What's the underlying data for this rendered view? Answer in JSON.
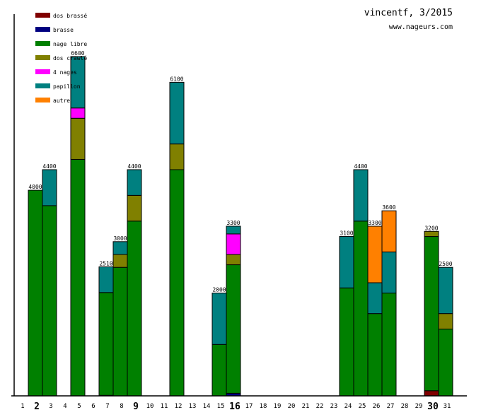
{
  "chart_data": {
    "type": "bar",
    "stacked": true,
    "title": "vincentf, 3/2015",
    "subtitle": "www.nageurs.com",
    "xlabel": "",
    "ylabel": "",
    "ylim": [
      0,
      6600
    ],
    "grid": false,
    "legend_position": "top-left",
    "categories": [
      "1",
      "2",
      "3",
      "4",
      "5",
      "6",
      "7",
      "8",
      "9",
      "10",
      "11",
      "12",
      "13",
      "14",
      "15",
      "16",
      "17",
      "18",
      "19",
      "20",
      "21",
      "22",
      "23",
      "24",
      "25",
      "26",
      "27",
      "28",
      "29",
      "30",
      "31"
    ],
    "bold_categories": [
      "2",
      "9",
      "16",
      "30"
    ],
    "series": [
      {
        "name": "dos brassé",
        "color": "#800000",
        "values": [
          0,
          0,
          0,
          0,
          0,
          0,
          0,
          0,
          0,
          0,
          0,
          0,
          0,
          0,
          0,
          0,
          0,
          0,
          0,
          0,
          0,
          0,
          0,
          0,
          0,
          0,
          0,
          0,
          0,
          100,
          0
        ]
      },
      {
        "name": "brasse",
        "color": "#000080",
        "values": [
          0,
          0,
          0,
          0,
          0,
          0,
          10,
          0,
          0,
          0,
          0,
          0,
          0,
          0,
          0,
          50,
          0,
          0,
          0,
          0,
          0,
          0,
          0,
          0,
          0,
          0,
          0,
          0,
          0,
          0,
          0
        ]
      },
      {
        "name": "nage libre",
        "color": "#008000",
        "values": [
          0,
          4000,
          3700,
          0,
          4600,
          0,
          2000,
          2500,
          3400,
          0,
          0,
          4400,
          0,
          0,
          1000,
          2500,
          0,
          0,
          0,
          0,
          0,
          0,
          0,
          2100,
          3400,
          1600,
          2000,
          0,
          0,
          3000,
          1300
        ]
      },
      {
        "name": "dos crawlé",
        "color": "#808000",
        "values": [
          0,
          0,
          0,
          0,
          800,
          0,
          0,
          250,
          500,
          0,
          0,
          500,
          0,
          0,
          0,
          200,
          0,
          0,
          0,
          0,
          0,
          0,
          0,
          0,
          0,
          0,
          0,
          0,
          0,
          100,
          300
        ]
      },
      {
        "name": "4 nages",
        "color": "#ff00ff",
        "values": [
          0,
          0,
          0,
          0,
          200,
          0,
          0,
          0,
          0,
          0,
          0,
          0,
          0,
          0,
          0,
          400,
          0,
          0,
          0,
          0,
          0,
          0,
          0,
          0,
          0,
          0,
          0,
          0,
          0,
          0,
          0
        ]
      },
      {
        "name": "papillon",
        "color": "#008080",
        "values": [
          0,
          0,
          700,
          0,
          1000,
          0,
          500,
          250,
          500,
          0,
          0,
          1200,
          0,
          0,
          1000,
          150,
          0,
          0,
          0,
          0,
          0,
          0,
          0,
          1000,
          1000,
          600,
          800,
          0,
          0,
          0,
          900
        ]
      },
      {
        "name": "autre",
        "color": "#ff8000",
        "values": [
          0,
          0,
          0,
          0,
          0,
          0,
          0,
          0,
          0,
          0,
          0,
          0,
          0,
          0,
          0,
          0,
          0,
          0,
          0,
          0,
          0,
          0,
          0,
          0,
          0,
          1100,
          800,
          0,
          0,
          0,
          0
        ]
      }
    ],
    "totals": [
      "",
      "4000",
      "4400",
      "",
      "6600",
      "",
      "2510",
      "3000",
      "4400",
      "",
      "",
      "6100",
      "",
      "",
      "2000",
      "3300",
      "",
      "",
      "",
      "",
      "",
      "",
      "",
      "3100",
      "4400",
      "3300",
      "3600",
      "",
      "",
      "3200",
      "2500"
    ]
  }
}
